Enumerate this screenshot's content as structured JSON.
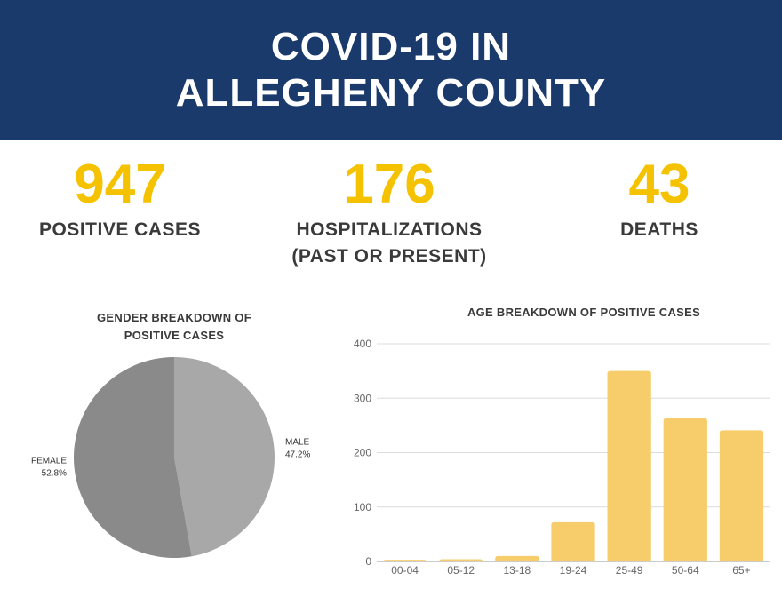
{
  "header": {
    "title_line1": "COVID-19 IN",
    "title_line2": "ALLEGHENY COUNTY"
  },
  "stats": {
    "cases": {
      "value": "947",
      "label": "POSITIVE CASES"
    },
    "hospitalizations": {
      "value": "176",
      "label_line1": "HOSPITALIZATIONS",
      "label_line2": "(PAST OR PRESENT)"
    },
    "deaths": {
      "value": "43",
      "label": "DEATHS"
    }
  },
  "colors": {
    "header_bg": "#1a3a6b",
    "accent_yellow": "#f5c200",
    "bar_fill": "#f6cd6a",
    "female_slice": "#8a8a8a",
    "male_slice": "#a8a8a8"
  },
  "chart_data": [
    {
      "type": "pie",
      "title_line1": "GENDER BREAKDOWN OF",
      "title_line2": "POSITIVE CASES",
      "slices": [
        {
          "label": "MALE",
          "value": 47.2,
          "value_text": "47.2%"
        },
        {
          "label": "FEMALE",
          "value": 52.8,
          "value_text": "52.8%"
        }
      ]
    },
    {
      "type": "bar",
      "title": "AGE BREAKDOWN OF POSITIVE CASES",
      "categories": [
        "00-04",
        "05-12",
        "13-18",
        "19-24",
        "25-49",
        "50-64",
        "65+"
      ],
      "values": [
        3,
        4,
        10,
        72,
        350,
        263,
        241
      ],
      "ylim": [
        0,
        400
      ],
      "yticks": [
        0,
        100,
        200,
        300,
        400
      ],
      "grid": true
    }
  ]
}
